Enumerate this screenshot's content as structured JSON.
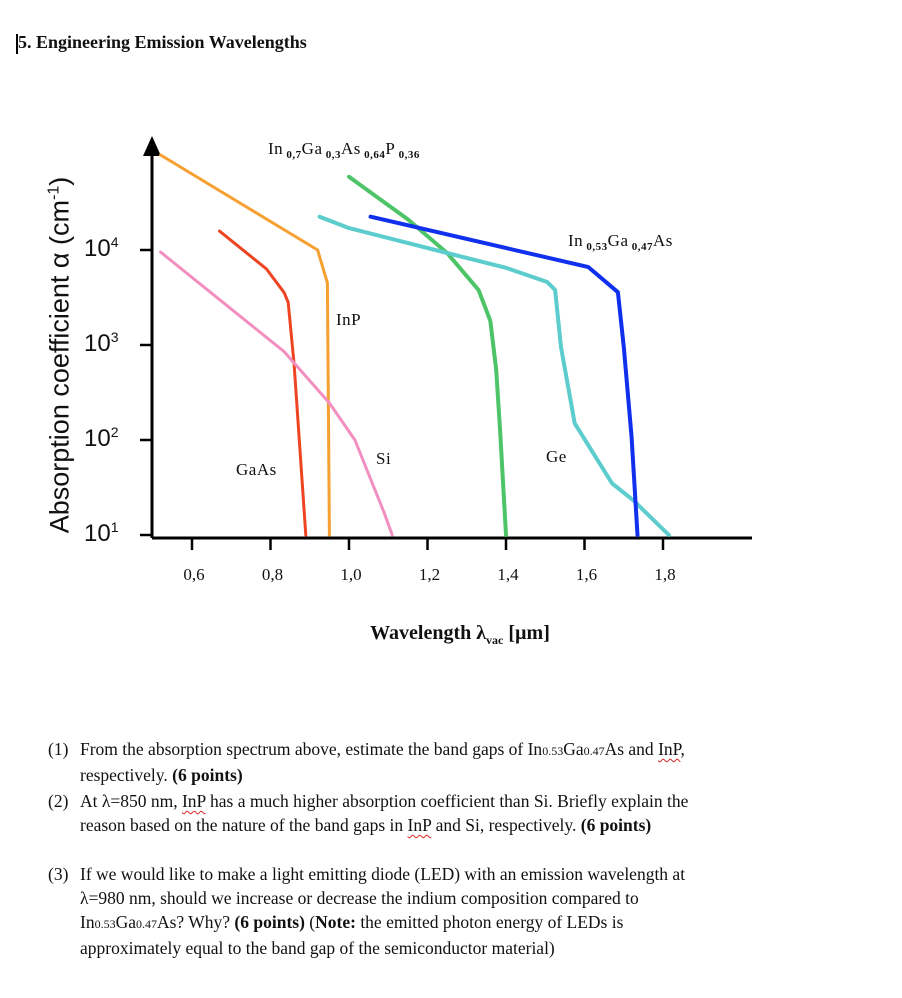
{
  "title": "5. Engineering Emission Wavelengths",
  "chart_data": {
    "type": "line",
    "xlabel": "Wavelength λvac [µm]",
    "xlabel_main": "Wavelength λ",
    "xlabel_sub": "vac",
    "xlabel_unit": " [µm]",
    "ylabel": "Absorption coefficient α (cm-1)",
    "ylabel_main": "Absorption coefficient α (cm",
    "ylabel_sup": "-1",
    "ylabel_end": ")",
    "y_scale": "log",
    "xlim": [
      0.5,
      2.03
    ],
    "ylim": [
      10,
      125000
    ],
    "x_ticks": [
      "0,6",
      "0,8",
      "1,0",
      "1,2",
      "1,4",
      "1,6",
      "1,8"
    ],
    "x_tick_values": [
      0.6,
      0.8,
      1.0,
      1.2,
      1.4,
      1.6,
      1.8
    ],
    "y_ticks": [
      {
        "base": "10",
        "exp": "4",
        "value": 10000
      },
      {
        "base": "10",
        "exp": "3",
        "value": 1000
      },
      {
        "base": "10",
        "exp": "2",
        "value": 100
      },
      {
        "base": "10",
        "exp": "1",
        "value": 10
      }
    ],
    "grid": false,
    "series": [
      {
        "name": "InP",
        "color": "#f5a030",
        "points": [
          [
            0.52,
            100000
          ],
          [
            0.92,
            10000
          ],
          [
            0.945,
            4500
          ],
          [
            0.95,
            10
          ]
        ]
      },
      {
        "name": "GaAs",
        "color": "#ee4422",
        "points": [
          [
            0.67,
            15800
          ],
          [
            0.79,
            6300
          ],
          [
            0.835,
            3550
          ],
          [
            0.845,
            2800
          ],
          [
            0.86,
            630
          ],
          [
            0.89,
            10
          ]
        ]
      },
      {
        "name": "Si",
        "color": "#f28fc0",
        "points": [
          [
            0.52,
            9500
          ],
          [
            0.835,
            850
          ],
          [
            0.95,
            245
          ],
          [
            1.015,
            100
          ],
          [
            1.09,
            17
          ],
          [
            1.11,
            10
          ]
        ]
      },
      {
        "name": "In0,7Ga0,3As0,64P0,36",
        "color": "#4cc467",
        "points": [
          [
            1.0,
            59000
          ],
          [
            1.15,
            21000
          ],
          [
            1.25,
            9300
          ],
          [
            1.33,
            3800
          ],
          [
            1.36,
            1800
          ],
          [
            1.375,
            550
          ],
          [
            1.385,
            126
          ],
          [
            1.4,
            10
          ]
        ]
      },
      {
        "name": "Ge",
        "color": "#5ccccc",
        "points": [
          [
            0.925,
            22400
          ],
          [
            1.0,
            17000
          ],
          [
            1.25,
            9300
          ],
          [
            1.4,
            6500
          ],
          [
            1.505,
            4600
          ],
          [
            1.525,
            3800
          ],
          [
            1.54,
            950
          ],
          [
            1.575,
            150
          ],
          [
            1.67,
            35
          ],
          [
            1.725,
            23
          ],
          [
            1.815,
            10
          ]
        ]
      },
      {
        "name": "In0,53Ga0,47As",
        "color": "#1030ee",
        "points": [
          [
            1.055,
            22400
          ],
          [
            1.61,
            6600
          ],
          [
            1.685,
            3600
          ],
          [
            1.7,
            950
          ],
          [
            1.72,
            107
          ],
          [
            1.735,
            10
          ]
        ]
      }
    ],
    "curve_labels": {
      "inp": "InP",
      "gaas": "GaAs",
      "si": "Si",
      "ge": "Ge",
      "ingaasp": [
        {
          "t": "In",
          "s": " 0,7"
        },
        {
          "t": "Ga",
          "s": " 0,3"
        },
        {
          "t": "As",
          "s": " 0,64"
        },
        {
          "t": "P",
          "s": " 0,36"
        }
      ],
      "ingaas": [
        {
          "t": "In",
          "s": " 0,53"
        },
        {
          "t": "Ga",
          "s": " 0,47"
        },
        {
          "t": "As",
          "s": ""
        }
      ]
    }
  },
  "questions": [
    {
      "num": "(1)",
      "lines": [
        [
          {
            "t": "From the absorption spectrum above, estimate the band gaps of In"
          },
          {
            "t": "0.53",
            "c": "small"
          },
          {
            "t": "Ga"
          },
          {
            "t": "0.47",
            "c": "small"
          },
          {
            "t": "As and "
          },
          {
            "t": "InP",
            "c": "squig"
          },
          {
            "t": ","
          }
        ],
        [
          {
            "t": "respectively. "
          },
          {
            "t": "(6 points)",
            "c": "bold"
          }
        ]
      ]
    },
    {
      "num": "(2)",
      "lines": [
        [
          {
            "t": "At λ=850 nm, "
          },
          {
            "t": "InP",
            "c": "squig"
          },
          {
            "t": " has a much higher absorption coefficient than Si. Briefly explain the"
          }
        ],
        [
          {
            "t": "reason based on the nature of the band gaps in "
          },
          {
            "t": "InP",
            "c": "squig"
          },
          {
            "t": " and Si, respectively. "
          },
          {
            "t": "(6 points)",
            "c": "bold"
          }
        ]
      ]
    },
    {
      "num": "(3)",
      "lines": [
        [
          {
            "t": "If we would like to make a light emitting diode (LED) with an emission wavelength at"
          }
        ],
        [
          {
            "t": "λ=980 nm, should we increase or decrease the indium composition compared to"
          }
        ],
        [
          {
            "t": "In"
          },
          {
            "t": "0.53",
            "c": "small"
          },
          {
            "t": "Ga"
          },
          {
            "t": "0.47",
            "c": "small"
          },
          {
            "t": "As? Why? "
          },
          {
            "t": "(6 points)",
            "c": "bold"
          },
          {
            "t": " ("
          },
          {
            "t": "Note:",
            "c": "bold"
          },
          {
            "t": " the emitted photon energy of LEDs is"
          }
        ],
        [
          {
            "t": "approximately equal to the band gap of the semiconductor material)"
          }
        ]
      ]
    }
  ]
}
